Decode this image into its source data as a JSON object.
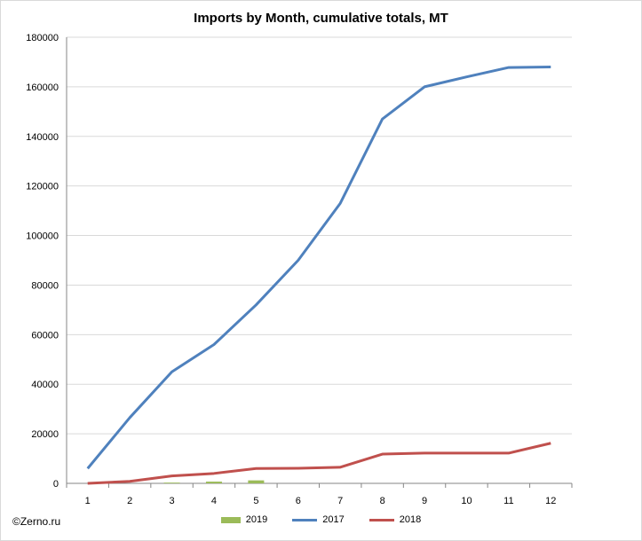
{
  "chart_data": {
    "type": "line",
    "title": "Imports by Month, cumulative totals, MT",
    "categories": [
      "1",
      "2",
      "3",
      "4",
      "5",
      "6",
      "7",
      "8",
      "9",
      "10",
      "11",
      "12"
    ],
    "ylim": [
      0,
      180000
    ],
    "yticks": [
      0,
      20000,
      40000,
      60000,
      80000,
      100000,
      120000,
      140000,
      160000,
      180000
    ],
    "ytick_labels": [
      "0",
      "20000",
      "40000",
      "60000",
      "80000",
      "100000",
      "120000",
      "140000",
      "160000",
      "180000"
    ],
    "grid": true,
    "legend_position": "bottom",
    "series": [
      {
        "name": "2019",
        "kind": "bar",
        "color": "#9bbb59",
        "values": [
          0,
          0,
          300,
          700,
          1200,
          null,
          null,
          null,
          null,
          null,
          null,
          null
        ]
      },
      {
        "name": "2017",
        "kind": "line",
        "color": "#4f81bd",
        "values": [
          6000,
          26500,
          45000,
          56000,
          72000,
          90000,
          113000,
          147000,
          160000,
          164000,
          167800,
          168000
        ]
      },
      {
        "name": "2018",
        "kind": "line",
        "color": "#c0504d",
        "values": [
          0,
          800,
          3000,
          4000,
          6000,
          6100,
          6500,
          11800,
          12200,
          12200,
          12200,
          16200
        ]
      }
    ]
  },
  "footer": {
    "copyright": "©Zerno.ru"
  }
}
